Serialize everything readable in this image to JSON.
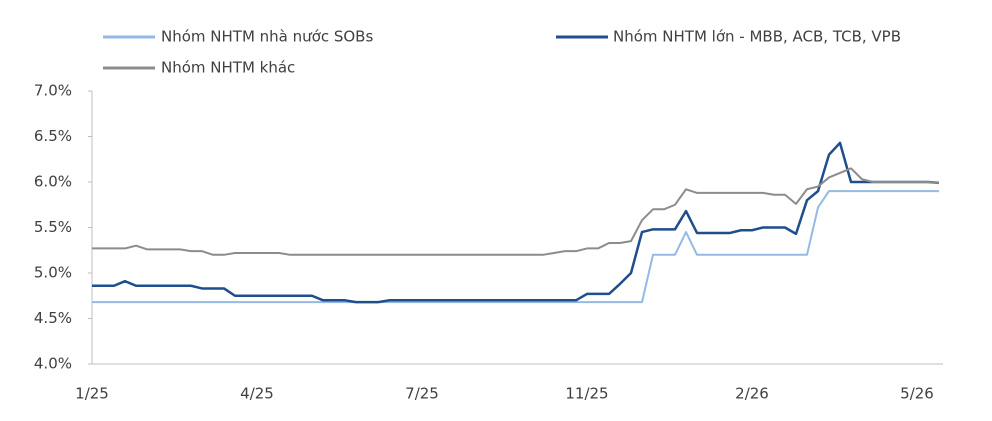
{
  "chart_data": {
    "type": "line",
    "categories": [
      "1/25",
      null,
      null,
      null,
      null,
      null,
      null,
      null,
      null,
      null,
      null,
      null,
      null,
      null,
      null,
      "4/25",
      null,
      null,
      null,
      null,
      null,
      null,
      null,
      null,
      null,
      null,
      null,
      null,
      null,
      null,
      "7/25",
      null,
      null,
      null,
      null,
      null,
      null,
      null,
      null,
      null,
      null,
      null,
      null,
      null,
      null,
      "11/25",
      null,
      null,
      null,
      null,
      null,
      null,
      null,
      null,
      null,
      null,
      null,
      null,
      null,
      null,
      "2/26",
      null,
      null,
      null,
      null,
      null,
      null,
      null,
      null,
      null,
      null,
      null,
      null,
      null,
      null,
      "5/26",
      null,
      null
    ],
    "series": [
      {
        "name": "Nhóm NHTM nhà nước SOBs",
        "color": "#95b9e4",
        "values": [
          4.68,
          4.68,
          4.68,
          4.68,
          4.68,
          4.68,
          4.68,
          4.68,
          4.68,
          4.68,
          4.68,
          4.68,
          4.68,
          4.68,
          4.68,
          4.68,
          4.68,
          4.68,
          4.68,
          4.68,
          4.68,
          4.68,
          4.68,
          4.68,
          4.68,
          4.68,
          4.68,
          4.68,
          4.68,
          4.68,
          4.68,
          4.68,
          4.68,
          4.68,
          4.68,
          4.68,
          4.68,
          4.68,
          4.68,
          4.68,
          4.68,
          4.68,
          4.68,
          4.68,
          4.68,
          4.68,
          4.68,
          4.68,
          4.68,
          4.68,
          4.68,
          5.2,
          5.2,
          5.2,
          5.45,
          5.2,
          5.2,
          5.2,
          5.2,
          5.2,
          5.2,
          5.2,
          5.2,
          5.2,
          5.2,
          5.2,
          5.72,
          5.9,
          5.9,
          5.9,
          5.9,
          5.9,
          5.9,
          5.9,
          5.9,
          5.9,
          5.9,
          5.9
        ]
      },
      {
        "name": "Nhóm NHTM lớn - MBB, ACB, TCB, VPB",
        "color": "#1f4e8c",
        "values": [
          4.86,
          4.86,
          4.86,
          4.91,
          4.86,
          4.86,
          4.86,
          4.86,
          4.86,
          4.86,
          4.83,
          4.83,
          4.83,
          4.75,
          4.75,
          4.75,
          4.75,
          4.75,
          4.75,
          4.75,
          4.75,
          4.7,
          4.7,
          4.7,
          4.68,
          4.68,
          4.68,
          4.7,
          4.7,
          4.7,
          4.7,
          4.7,
          4.7,
          4.7,
          4.7,
          4.7,
          4.7,
          4.7,
          4.7,
          4.7,
          4.7,
          4.7,
          4.7,
          4.7,
          4.7,
          4.77,
          4.77,
          4.77,
          4.88,
          5.0,
          5.45,
          5.48,
          5.48,
          5.48,
          5.68,
          5.44,
          5.44,
          5.44,
          5.44,
          5.47,
          5.47,
          5.5,
          5.5,
          5.5,
          5.43,
          5.8,
          5.9,
          6.3,
          6.43,
          6.0,
          6.0,
          6.0,
          6.0,
          6.0,
          6.0,
          6.0,
          6.0,
          5.99
        ]
      },
      {
        "name": "Nhóm NHTM khác",
        "color": "#8c8c8c",
        "values": [
          5.27,
          5.27,
          5.27,
          5.27,
          5.3,
          5.26,
          5.26,
          5.26,
          5.26,
          5.24,
          5.24,
          5.2,
          5.2,
          5.22,
          5.22,
          5.22,
          5.22,
          5.22,
          5.2,
          5.2,
          5.2,
          5.2,
          5.2,
          5.2,
          5.2,
          5.2,
          5.2,
          5.2,
          5.2,
          5.2,
          5.2,
          5.2,
          5.2,
          5.2,
          5.2,
          5.2,
          5.2,
          5.2,
          5.2,
          5.2,
          5.2,
          5.2,
          5.22,
          5.24,
          5.24,
          5.27,
          5.27,
          5.33,
          5.33,
          5.35,
          5.58,
          5.7,
          5.7,
          5.75,
          5.92,
          5.88,
          5.88,
          5.88,
          5.88,
          5.88,
          5.88,
          5.88,
          5.86,
          5.86,
          5.76,
          5.92,
          5.95,
          6.05,
          6.1,
          6.15,
          6.03,
          6.0,
          6.0,
          6.0,
          6.0,
          6.0,
          6.0,
          5.99
        ]
      }
    ],
    "ylim": [
      4.0,
      7.0
    ],
    "yticks": [
      {
        "value": 4.0,
        "label": "4.0%"
      },
      {
        "value": 4.5,
        "label": "4.5%"
      },
      {
        "value": 5.0,
        "label": "5.0%"
      },
      {
        "value": 5.5,
        "label": "5.5%"
      },
      {
        "value": 6.0,
        "label": "6.0%"
      },
      {
        "value": 6.5,
        "label": "6.5%"
      },
      {
        "value": 7.0,
        "label": "7.0%"
      }
    ],
    "grid": false
  }
}
